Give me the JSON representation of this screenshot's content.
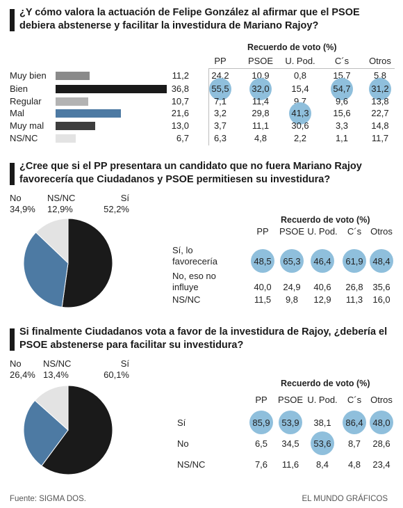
{
  "colors": {
    "black": "#1a1a1a",
    "gray": "#999999",
    "light_gray": "#e6e6e6",
    "blue": "#4d7aa3",
    "dark_gray": "#3d3d3d",
    "highlight": "#8fbfdc"
  },
  "q1": {
    "title_line1": "¿Y cómo valora la actuación de Felipe González al afirmar que el PSOE",
    "title_line2": "debiera abstenerse y facilitar la investidura de Mariano Rajoy?",
    "header": "Recuerdo de voto (%)",
    "columns": [
      "PP",
      "PSOE",
      "U. Pod.",
      "C´s",
      "Otros"
    ],
    "rows": [
      {
        "label": "Muy bien",
        "total": "11,2",
        "bar_value": 11.2,
        "bar_color": "#8a8a8a",
        "cells": [
          "24,2",
          "10,9",
          "0,8",
          "15,7",
          "5,8"
        ],
        "highlight": [
          false,
          false,
          false,
          false,
          false
        ]
      },
      {
        "label": "Bien",
        "total": "36,8",
        "bar_value": 36.8,
        "bar_color": "#1a1a1a",
        "cells": [
          "55,5",
          "32,0",
          "15,4",
          "54,7",
          "31,2"
        ],
        "highlight": [
          true,
          true,
          false,
          true,
          true
        ]
      },
      {
        "label": "Regular",
        "total": "10,7",
        "bar_value": 10.7,
        "bar_color": "#b3b3b3",
        "cells": [
          "7,1",
          "11,4",
          "9,7",
          "9,6",
          "13,8"
        ],
        "highlight": [
          false,
          false,
          false,
          false,
          false
        ]
      },
      {
        "label": "Mal",
        "total": "21,6",
        "bar_value": 21.6,
        "bar_color": "#4d7aa3",
        "cells": [
          "3,2",
          "29,8",
          "41,3",
          "15,6",
          "22,7"
        ],
        "highlight": [
          false,
          false,
          true,
          false,
          false
        ]
      },
      {
        "label": "Muy mal",
        "total": "13,0",
        "bar_value": 13.0,
        "bar_color": "#3d3d3d",
        "cells": [
          "3,7",
          "11,1",
          "30,6",
          "3,3",
          "14,8"
        ],
        "highlight": [
          false,
          false,
          false,
          false,
          false
        ]
      },
      {
        "label": "NS/NC",
        "total": "6,7",
        "bar_value": 6.7,
        "bar_color": "#e3e3e3",
        "cells": [
          "6,3",
          "4,8",
          "2,2",
          "1,1",
          "11,7"
        ],
        "highlight": [
          false,
          false,
          false,
          false,
          false
        ]
      }
    ]
  },
  "q2": {
    "title_line1": "¿Cree que si el PP presentara un candidato que no fuera Mariano Rajoy",
    "title_line2": "favorecería que Ciudadanos y PSOE permitiesen su investidura?",
    "pie_labels": [
      {
        "name": "No",
        "value": "34,9%"
      },
      {
        "name": "NS/NC",
        "value": "12,9%"
      },
      {
        "name": "Sí",
        "value": "52,2%"
      }
    ],
    "header": "Recuerdo de voto (%)",
    "columns": [
      "PP",
      "PSOE",
      "U. Pod.",
      "C´s",
      "Otros"
    ],
    "rows": [
      {
        "label_line1": "Sí, lo",
        "label_line2": "favorecería",
        "cells": [
          "48,5",
          "65,3",
          "46,4",
          "61,9",
          "48,4"
        ],
        "highlight": [
          true,
          true,
          true,
          true,
          true
        ]
      },
      {
        "label_line1": "No, eso no",
        "label_line2": "influye",
        "cells": [
          "40,0",
          "24,9",
          "40,6",
          "26,8",
          "35,6"
        ],
        "highlight": [
          false,
          false,
          false,
          false,
          false
        ]
      },
      {
        "label_line1": "NS/NC",
        "label_line2": "",
        "cells": [
          "11,5",
          "9,8",
          "12,9",
          "11,3",
          "16,0"
        ],
        "highlight": [
          false,
          false,
          false,
          false,
          false
        ]
      }
    ]
  },
  "q3": {
    "title_line1": "Si finalmente Ciudadanos vota a favor de la investidura de Rajoy, ¿debería el",
    "title_line2": "PSOE abstenerse para facilitar su investidura?",
    "pie_labels": [
      {
        "name": "No",
        "value": "26,4%"
      },
      {
        "name": "NS/NC",
        "value": "13,4%"
      },
      {
        "name": "Sí",
        "value": "60,1%"
      }
    ],
    "header": "Recuerdo de voto (%)",
    "columns": [
      "PP",
      "PSOE",
      "U. Pod.",
      "C´s",
      "Otros"
    ],
    "rows": [
      {
        "label": "Sí",
        "cells": [
          "85,9",
          "53,9",
          "38,1",
          "86,4",
          "48,0"
        ],
        "highlight": [
          true,
          true,
          false,
          true,
          true
        ]
      },
      {
        "label": "No",
        "cells": [
          "6,5",
          "34,5",
          "53,6",
          "8,7",
          "28,6"
        ],
        "highlight": [
          false,
          false,
          true,
          false,
          false
        ]
      },
      {
        "label": "NS/NC",
        "cells": [
          "7,6",
          "11,6",
          "8,4",
          "4,8",
          "23,4"
        ],
        "highlight": [
          false,
          false,
          false,
          false,
          false
        ]
      }
    ]
  },
  "chart_data": [
    {
      "type": "bar",
      "title": "¿Y cómo valora la actuación de Felipe González al afirmar que el PSOE debiera abstenerse y facilitar la investidura de Mariano Rajoy?",
      "categories": [
        "Muy bien",
        "Bien",
        "Regular",
        "Mal",
        "Muy mal",
        "NS/NC"
      ],
      "values": [
        11.2,
        36.8,
        10.7,
        21.6,
        13.0,
        6.7
      ],
      "table": {
        "header": "Recuerdo de voto (%)",
        "columns": [
          "PP",
          "PSOE",
          "U. Pod.",
          "C´s",
          "Otros"
        ],
        "rows": [
          [
            24.2,
            10.9,
            0.8,
            15.7,
            5.8
          ],
          [
            55.5,
            32.0,
            15.4,
            54.7,
            31.2
          ],
          [
            7.1,
            11.4,
            9.7,
            9.6,
            13.8
          ],
          [
            3.2,
            29.8,
            41.3,
            15.6,
            22.7
          ],
          [
            3.7,
            11.1,
            30.6,
            3.3,
            14.8
          ],
          [
            6.3,
            4.8,
            2.2,
            1.1,
            11.7
          ]
        ]
      }
    },
    {
      "type": "pie",
      "title": "¿Cree que si el PP presentara un candidato que no fuera Mariano Rajoy favorecería que Ciudadanos y PSOE permitiesen su investidura?",
      "categories": [
        "Sí",
        "No",
        "NS/NC"
      ],
      "values": [
        52.2,
        34.9,
        12.9
      ],
      "colors": [
        "#1a1a1a",
        "#4d7aa3",
        "#e3e3e3"
      ],
      "table": {
        "header": "Recuerdo de voto (%)",
        "columns": [
          "PP",
          "PSOE",
          "U. Pod.",
          "C´s",
          "Otros"
        ],
        "rows": [
          [
            48.5,
            65.3,
            46.4,
            61.9,
            48.4
          ],
          [
            40.0,
            24.9,
            40.6,
            26.8,
            35.6
          ],
          [
            11.5,
            9.8,
            12.9,
            11.3,
            16.0
          ]
        ]
      }
    },
    {
      "type": "pie",
      "title": "Si finalmente Ciudadanos vota a favor de la investidura de Rajoy, ¿debería el PSOE abstenerse para facilitar su investidura?",
      "categories": [
        "Sí",
        "No",
        "NS/NC"
      ],
      "values": [
        60.1,
        26.4,
        13.4
      ],
      "colors": [
        "#1a1a1a",
        "#4d7aa3",
        "#e3e3e3"
      ],
      "table": {
        "header": "Recuerdo de voto (%)",
        "columns": [
          "PP",
          "PSOE",
          "U. Pod.",
          "C´s",
          "Otros"
        ],
        "rows": [
          [
            85.9,
            53.9,
            38.1,
            86.4,
            48.0
          ],
          [
            6.5,
            34.5,
            53.6,
            8.7,
            28.6
          ],
          [
            7.6,
            11.6,
            8.4,
            4.8,
            23.4
          ]
        ]
      }
    }
  ],
  "footer": {
    "source": "Fuente: SIGMA DOS.",
    "credit": "EL MUNDO GRÁFICOS"
  }
}
